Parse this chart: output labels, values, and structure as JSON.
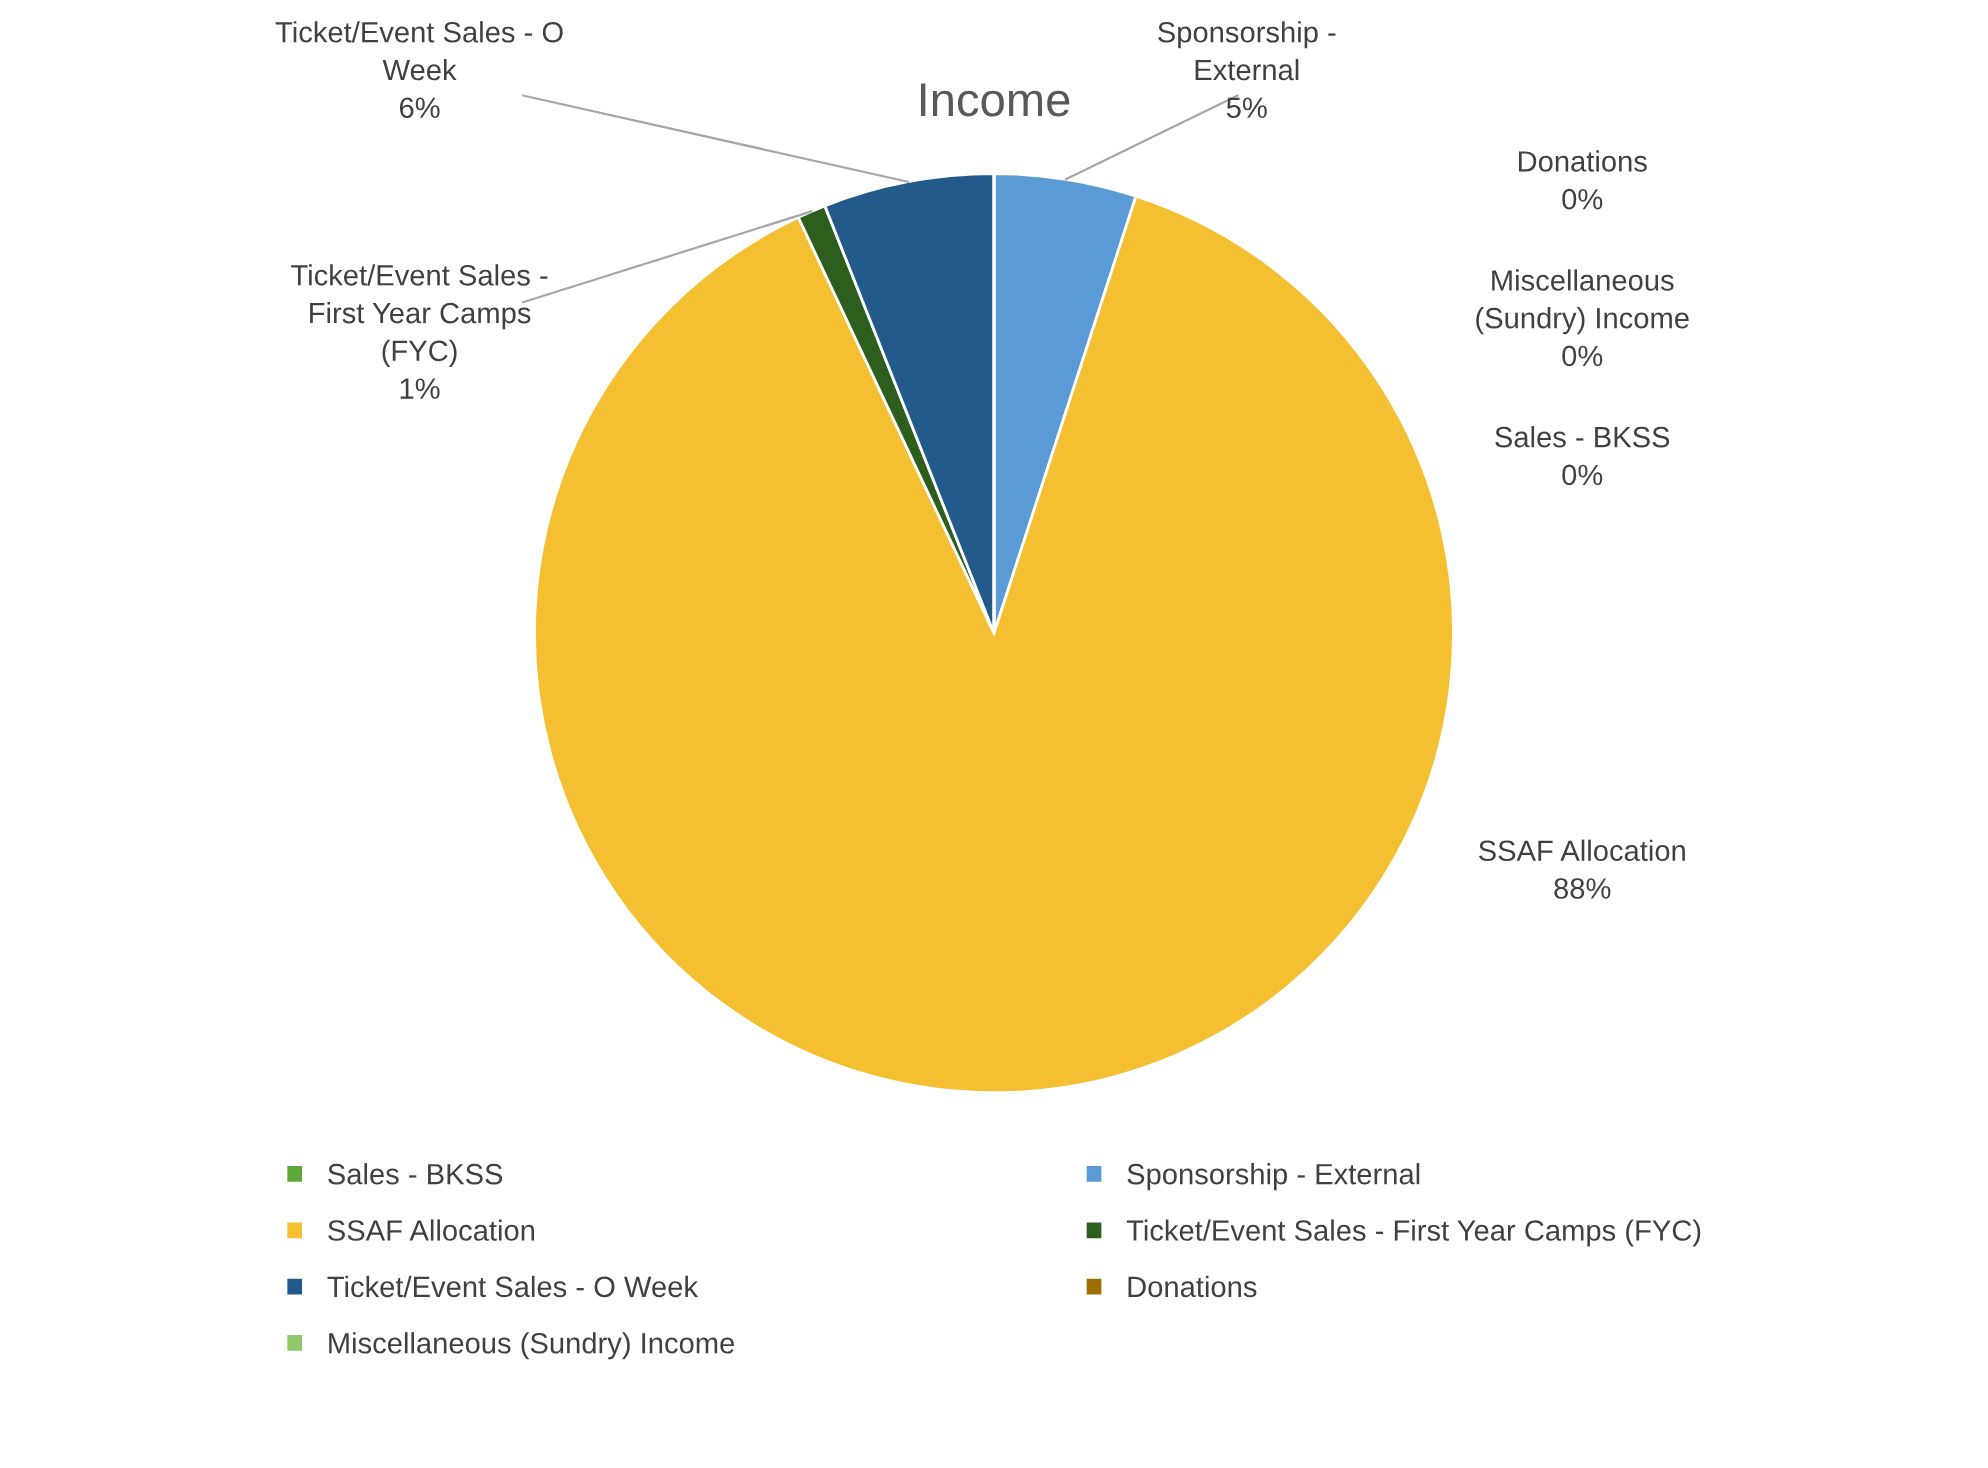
{
  "chart_data": {
    "type": "pie",
    "title": "Income",
    "categories": [
      "Sales - BKSS",
      "Sponsorship - External",
      "SSAF Allocation",
      "Ticket/Event Sales - First Year Camps (FYC)",
      "Ticket/Event Sales - O Week",
      "Donations",
      "Miscellaneous (Sundry) Income"
    ],
    "values": [
      0,
      5,
      88,
      1,
      6,
      0,
      0
    ],
    "colors": [
      "#5ea83a",
      "#5b9bd5",
      "#f4bf30",
      "#2e5e1e",
      "#235a8c",
      "#9c6f00",
      "#8fc96a"
    ],
    "annotations": [
      "Sales - BKSS\n0%",
      "Sponsorship -\nExternal\n5%",
      "SSAF Allocation\n88%",
      "Ticket/Event Sales -\nFirst Year Camps\n(FYC)\n1%",
      "Ticket/Event Sales - O\nWeek\n6%",
      "Donations\n0%",
      "Miscellaneous\n(Sundry) Income\n0%"
    ],
    "legend": "bottom"
  }
}
